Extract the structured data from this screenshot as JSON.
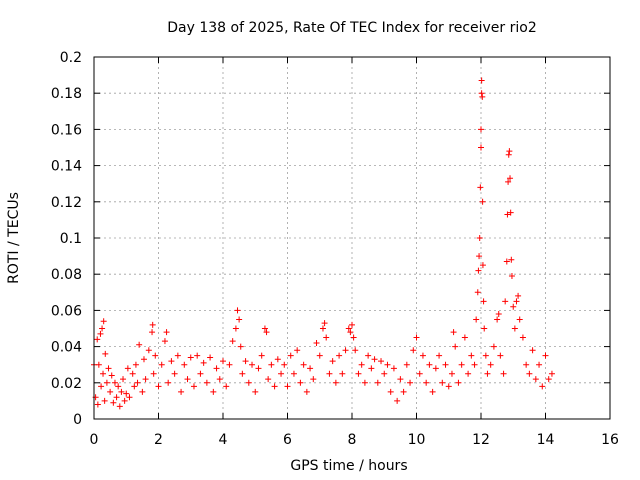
{
  "chart_data": {
    "type": "scatter",
    "title": "Day 138 of 2025, Rate Of TEC Index for receiver rio2",
    "xlabel": "GPS time / hours",
    "ylabel": "ROTI / TECUs",
    "xlim": [
      0,
      16
    ],
    "ylim": [
      0,
      0.2
    ],
    "xticks": [
      0,
      2,
      4,
      6,
      8,
      10,
      12,
      14,
      16
    ],
    "yticks": [
      0,
      0.02,
      0.04,
      0.06,
      0.08,
      0.1,
      0.12,
      0.14,
      0.16,
      0.18,
      0.2
    ],
    "xtick_labels": [
      "0",
      "2",
      "4",
      "6",
      "8",
      "10",
      "12",
      "14",
      "16"
    ],
    "ytick_labels": [
      "0",
      "0.02",
      "0.04",
      "0.06",
      "0.08",
      "0.1",
      "0.12",
      "0.14",
      "0.16",
      "0.18",
      "0.2"
    ],
    "grid": true,
    "marker": "plus",
    "color": "#ff0000",
    "series": [
      {
        "points": [
          [
            0.0,
            0.03
          ],
          [
            0.05,
            0.012
          ],
          [
            0.1,
            0.044
          ],
          [
            0.12,
            0.008
          ],
          [
            0.15,
            0.03
          ],
          [
            0.2,
            0.047
          ],
          [
            0.22,
            0.018
          ],
          [
            0.25,
            0.05
          ],
          [
            0.28,
            0.025
          ],
          [
            0.3,
            0.054
          ],
          [
            0.33,
            0.01
          ],
          [
            0.35,
            0.036
          ],
          [
            0.4,
            0.02
          ],
          [
            0.45,
            0.028
          ],
          [
            0.5,
            0.015
          ],
          [
            0.55,
            0.024
          ],
          [
            0.6,
            0.009
          ],
          [
            0.65,
            0.02
          ],
          [
            0.7,
            0.012
          ],
          [
            0.75,
            0.018
          ],
          [
            0.8,
            0.007
          ],
          [
            0.85,
            0.015
          ],
          [
            0.9,
            0.022
          ],
          [
            0.95,
            0.01
          ],
          [
            1.0,
            0.014
          ],
          [
            1.05,
            0.028
          ],
          [
            1.1,
            0.012
          ],
          [
            1.2,
            0.025
          ],
          [
            1.25,
            0.018
          ],
          [
            1.3,
            0.03
          ],
          [
            1.35,
            0.02
          ],
          [
            1.4,
            0.041
          ],
          [
            1.5,
            0.015
          ],
          [
            1.55,
            0.033
          ],
          [
            1.6,
            0.022
          ],
          [
            1.7,
            0.038
          ],
          [
            1.8,
            0.048
          ],
          [
            1.82,
            0.052
          ],
          [
            1.85,
            0.025
          ],
          [
            1.9,
            0.035
          ],
          [
            2.0,
            0.018
          ],
          [
            2.1,
            0.03
          ],
          [
            2.2,
            0.043
          ],
          [
            2.25,
            0.048
          ],
          [
            2.3,
            0.02
          ],
          [
            2.4,
            0.032
          ],
          [
            2.5,
            0.025
          ],
          [
            2.6,
            0.035
          ],
          [
            2.7,
            0.015
          ],
          [
            2.8,
            0.03
          ],
          [
            2.9,
            0.022
          ],
          [
            3.0,
            0.034
          ],
          [
            3.1,
            0.018
          ],
          [
            3.2,
            0.035
          ],
          [
            3.3,
            0.025
          ],
          [
            3.4,
            0.031
          ],
          [
            3.5,
            0.02
          ],
          [
            3.6,
            0.034
          ],
          [
            3.7,
            0.015
          ],
          [
            3.8,
            0.028
          ],
          [
            3.9,
            0.022
          ],
          [
            4.0,
            0.032
          ],
          [
            4.1,
            0.018
          ],
          [
            4.2,
            0.03
          ],
          [
            4.3,
            0.043
          ],
          [
            4.4,
            0.05
          ],
          [
            4.45,
            0.06
          ],
          [
            4.5,
            0.055
          ],
          [
            4.55,
            0.04
          ],
          [
            4.6,
            0.025
          ],
          [
            4.7,
            0.032
          ],
          [
            4.8,
            0.02
          ],
          [
            4.9,
            0.03
          ],
          [
            5.0,
            0.015
          ],
          [
            5.1,
            0.028
          ],
          [
            5.2,
            0.035
          ],
          [
            5.3,
            0.05
          ],
          [
            5.35,
            0.048
          ],
          [
            5.4,
            0.022
          ],
          [
            5.5,
            0.03
          ],
          [
            5.6,
            0.018
          ],
          [
            5.7,
            0.033
          ],
          [
            5.8,
            0.025
          ],
          [
            5.9,
            0.03
          ],
          [
            6.0,
            0.018
          ],
          [
            6.1,
            0.035
          ],
          [
            6.2,
            0.025
          ],
          [
            6.3,
            0.038
          ],
          [
            6.4,
            0.02
          ],
          [
            6.5,
            0.03
          ],
          [
            6.6,
            0.015
          ],
          [
            6.7,
            0.028
          ],
          [
            6.8,
            0.022
          ],
          [
            6.9,
            0.042
          ],
          [
            7.0,
            0.035
          ],
          [
            7.1,
            0.05
          ],
          [
            7.15,
            0.053
          ],
          [
            7.2,
            0.045
          ],
          [
            7.3,
            0.025
          ],
          [
            7.4,
            0.032
          ],
          [
            7.5,
            0.02
          ],
          [
            7.6,
            0.035
          ],
          [
            7.7,
            0.025
          ],
          [
            7.8,
            0.038
          ],
          [
            7.9,
            0.05
          ],
          [
            7.95,
            0.048
          ],
          [
            8.0,
            0.052
          ],
          [
            8.05,
            0.045
          ],
          [
            8.1,
            0.038
          ],
          [
            8.2,
            0.025
          ],
          [
            8.3,
            0.03
          ],
          [
            8.4,
            0.02
          ],
          [
            8.5,
            0.035
          ],
          [
            8.6,
            0.028
          ],
          [
            8.7,
            0.033
          ],
          [
            8.8,
            0.02
          ],
          [
            8.9,
            0.032
          ],
          [
            9.0,
            0.025
          ],
          [
            9.1,
            0.03
          ],
          [
            9.2,
            0.015
          ],
          [
            9.3,
            0.028
          ],
          [
            9.4,
            0.01
          ],
          [
            9.5,
            0.022
          ],
          [
            9.6,
            0.015
          ],
          [
            9.7,
            0.03
          ],
          [
            9.8,
            0.02
          ],
          [
            9.9,
            0.038
          ],
          [
            10.0,
            0.045
          ],
          [
            10.1,
            0.025
          ],
          [
            10.2,
            0.035
          ],
          [
            10.3,
            0.02
          ],
          [
            10.4,
            0.03
          ],
          [
            10.5,
            0.015
          ],
          [
            10.6,
            0.028
          ],
          [
            10.7,
            0.035
          ],
          [
            10.8,
            0.02
          ],
          [
            10.9,
            0.03
          ],
          [
            11.0,
            0.018
          ],
          [
            11.1,
            0.025
          ],
          [
            11.15,
            0.048
          ],
          [
            11.2,
            0.04
          ],
          [
            11.3,
            0.02
          ],
          [
            11.4,
            0.03
          ],
          [
            11.5,
            0.045
          ],
          [
            11.6,
            0.025
          ],
          [
            11.7,
            0.035
          ],
          [
            11.8,
            0.03
          ],
          [
            11.85,
            0.055
          ],
          [
            11.9,
            0.07
          ],
          [
            11.92,
            0.082
          ],
          [
            11.94,
            0.09
          ],
          [
            11.96,
            0.1
          ],
          [
            11.98,
            0.128
          ],
          [
            12.0,
            0.15
          ],
          [
            12.0,
            0.16
          ],
          [
            12.02,
            0.18
          ],
          [
            12.02,
            0.187
          ],
          [
            12.04,
            0.178
          ],
          [
            12.05,
            0.12
          ],
          [
            12.06,
            0.085
          ],
          [
            12.08,
            0.065
          ],
          [
            12.1,
            0.05
          ],
          [
            12.15,
            0.035
          ],
          [
            12.2,
            0.025
          ],
          [
            12.3,
            0.03
          ],
          [
            12.4,
            0.04
          ],
          [
            12.5,
            0.055
          ],
          [
            12.55,
            0.058
          ],
          [
            12.6,
            0.035
          ],
          [
            12.7,
            0.025
          ],
          [
            12.75,
            0.065
          ],
          [
            12.8,
            0.087
          ],
          [
            12.82,
            0.113
          ],
          [
            12.84,
            0.131
          ],
          [
            12.86,
            0.146
          ],
          [
            12.88,
            0.148
          ],
          [
            12.9,
            0.133
          ],
          [
            12.92,
            0.114
          ],
          [
            12.94,
            0.088
          ],
          [
            12.96,
            0.079
          ],
          [
            13.0,
            0.062
          ],
          [
            13.05,
            0.05
          ],
          [
            13.1,
            0.065
          ],
          [
            13.15,
            0.068
          ],
          [
            13.2,
            0.055
          ],
          [
            13.3,
            0.045
          ],
          [
            13.4,
            0.03
          ],
          [
            13.5,
            0.025
          ],
          [
            13.6,
            0.038
          ],
          [
            13.7,
            0.022
          ],
          [
            13.8,
            0.03
          ],
          [
            13.9,
            0.018
          ],
          [
            14.0,
            0.035
          ],
          [
            14.1,
            0.022
          ],
          [
            14.2,
            0.025
          ]
        ]
      }
    ]
  }
}
